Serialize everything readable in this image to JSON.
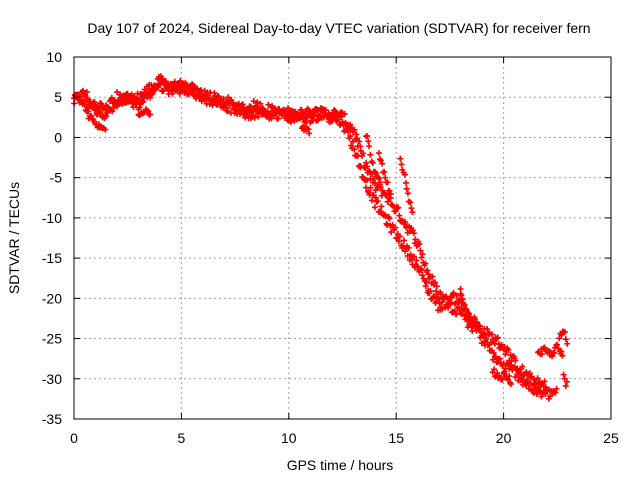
{
  "chart_data": {
    "type": "scatter",
    "title": "Day 107 of 2024, Sidereal Day-to-day VTEC variation (SDTVAR) for receiver fern",
    "xlabel": "GPS time / hours",
    "ylabel": "SDTVAR / TECUs",
    "xlim": [
      0,
      25
    ],
    "ylim": [
      -35,
      10
    ],
    "xticks": [
      0,
      5,
      10,
      15,
      20,
      25
    ],
    "yticks": [
      10,
      5,
      0,
      -5,
      -10,
      -15,
      -20,
      -25,
      -30,
      -35
    ],
    "grid": true,
    "marker": "+",
    "series": [
      {
        "name": "SDTVAR",
        "color": "#ff0000",
        "bands": [
          {
            "x": [
              0.0,
              0.5,
              1.0,
              1.5,
              2.0,
              2.5,
              3.0,
              3.5,
              4.0,
              4.5,
              5.0,
              5.5,
              6.0,
              6.5,
              7.0,
              7.5,
              8.0,
              8.5,
              9.0,
              9.5,
              10.0,
              10.5,
              11.0,
              11.5,
              12.0,
              12.5,
              13.0,
              13.5,
              14.0,
              14.5,
              15.0,
              15.5,
              16.0,
              16.5,
              17.0,
              17.5,
              18.0,
              18.5,
              19.0,
              19.5,
              20.0,
              20.5,
              21.0,
              21.5,
              22.0
            ],
            "y": [
              4.5,
              5.5,
              3.5,
              3.0,
              4.0,
              5.0,
              4.0,
              5.5,
              7.0,
              6.5,
              6.0,
              6.0,
              5.0,
              4.5,
              4.5,
              4.0,
              3.0,
              3.0,
              3.5,
              3.0,
              3.0,
              2.5,
              2.5,
              3.0,
              3.0,
              2.5,
              1.0,
              -3.0,
              -6.0,
              -7.0,
              -9.0,
              -11.0,
              -13.0,
              -17.0,
              -19.5,
              -21.0,
              -21.5,
              -22.5,
              -24.0,
              -25.0,
              -26.0,
              -28.0,
              -29.5,
              -30.5,
              -31.0
            ]
          },
          {
            "x": [
              0.0,
              0.5,
              1.0,
              1.5,
              2.0,
              2.5,
              3.0,
              3.5,
              4.0,
              4.5,
              5.0,
              5.5,
              6.0,
              6.5,
              7.0,
              7.5,
              8.0,
              8.5,
              9.0,
              9.5,
              10.0,
              10.5,
              11.0,
              11.5,
              12.0,
              12.5,
              13.0,
              13.5,
              14.0,
              14.5,
              15.0,
              15.5,
              16.0,
              16.5,
              17.0,
              17.5,
              18.0,
              18.5,
              19.0,
              19.5,
              20.0,
              20.5,
              21.0,
              21.5,
              22.0,
              22.5
            ],
            "y": [
              5.5,
              4.0,
              4.0,
              3.5,
              5.0,
              4.5,
              5.0,
              6.0,
              6.5,
              6.0,
              6.5,
              5.5,
              5.5,
              5.0,
              4.0,
              3.5,
              3.5,
              4.0,
              3.0,
              3.0,
              2.5,
              3.0,
              3.0,
              3.0,
              2.5,
              2.0,
              -1.0,
              -5.0,
              -8.0,
              -10.0,
              -12.0,
              -14.0,
              -16.0,
              -19.0,
              -21.0,
              -20.0,
              -20.0,
              -22.5,
              -25.0,
              -27.0,
              -28.5,
              -29.0,
              -30.5,
              -31.5,
              -32.0,
              -31.5
            ]
          }
        ],
        "segments": [
          {
            "x": [
              0.6,
              0.9,
              1.2,
              1.5
            ],
            "y": [
              3.0,
              2.0,
              1.2,
              1.0
            ]
          },
          {
            "x": [
              3.0,
              3.3,
              3.6
            ],
            "y": [
              3.0,
              3.5,
              3.0
            ]
          },
          {
            "x": [
              10.6,
              10.8,
              11.0
            ],
            "y": [
              1.5,
              1.0,
              0.5
            ]
          },
          {
            "x": [
              13.6,
              13.8,
              14.0,
              14.3
            ],
            "y": [
              0.5,
              -2.0,
              -4.5,
              -6.0
            ]
          },
          {
            "x": [
              14.2,
              14.4,
              14.6,
              14.8
            ],
            "y": [
              -2.0,
              -4.0,
              -6.0,
              -7.0
            ]
          },
          {
            "x": [
              15.2,
              15.4,
              15.6,
              15.8
            ],
            "y": [
              -3.0,
              -5.0,
              -8.0,
              -10.0
            ]
          },
          {
            "x": [
              18.0,
              18.3,
              18.6
            ],
            "y": [
              -19.0,
              -23.0,
              -24.0
            ]
          },
          {
            "x": [
              19.5,
              19.8,
              20.1,
              20.4
            ],
            "y": [
              -29.0,
              -30.0,
              -29.5,
              -30.5
            ]
          },
          {
            "x": [
              21.6,
              21.9,
              22.2,
              22.5,
              22.8
            ],
            "y": [
              -27.0,
              -26.5,
              -27.0,
              -26.0,
              -27.5
            ]
          },
          {
            "x": [
              22.6,
              22.8,
              23.0
            ],
            "y": [
              -25.0,
              -24.0,
              -26.0
            ]
          },
          {
            "x": [
              22.8,
              22.9,
              23.0
            ],
            "y": [
              -29.5,
              -30.5,
              -29.5
            ]
          }
        ],
        "spread": 0.7
      }
    ]
  }
}
